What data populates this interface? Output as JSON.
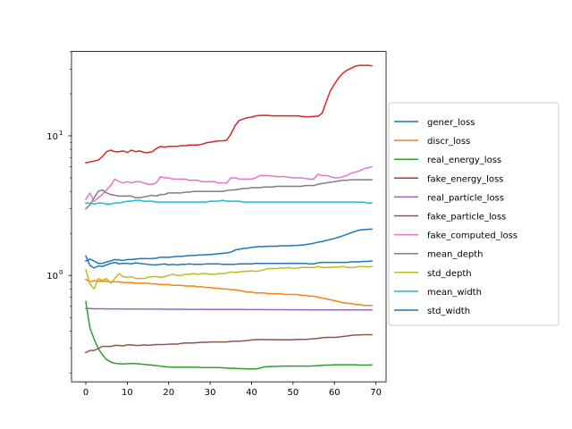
{
  "chart_data": {
    "type": "line",
    "title": "",
    "xlabel": "",
    "ylabel": "",
    "yscale": "log",
    "xlim": [
      -3.45,
      72.45
    ],
    "ylim": [
      0.173,
      40.2
    ],
    "xticks": [
      0,
      10,
      20,
      30,
      40,
      50,
      60,
      70
    ],
    "yticks": [
      {
        "value": 1,
        "label": "10",
        "exp": "0"
      },
      {
        "value": 10,
        "label": "10",
        "exp": "1"
      }
    ],
    "grid": false,
    "legend": "outside-right",
    "x": [
      0,
      1,
      2,
      3,
      4,
      5,
      6,
      7,
      8,
      9,
      10,
      11,
      12,
      13,
      14,
      15,
      16,
      17,
      18,
      19,
      20,
      21,
      22,
      23,
      24,
      25,
      26,
      27,
      28,
      29,
      30,
      31,
      32,
      33,
      34,
      35,
      36,
      37,
      38,
      39,
      40,
      41,
      42,
      43,
      44,
      45,
      46,
      47,
      48,
      49,
      50,
      51,
      52,
      53,
      54,
      55,
      56,
      57,
      58,
      59,
      60,
      61,
      62,
      63,
      64,
      65,
      66,
      67,
      68,
      69
    ],
    "series": [
      {
        "name": "gener_loss",
        "color": "#1f77b4",
        "values": [
          1.27,
          1.31,
          1.27,
          1.22,
          1.22,
          1.25,
          1.27,
          1.3,
          1.29,
          1.28,
          1.3,
          1.3,
          1.31,
          1.32,
          1.32,
          1.32,
          1.32,
          1.33,
          1.35,
          1.35,
          1.35,
          1.36,
          1.37,
          1.37,
          1.38,
          1.39,
          1.39,
          1.4,
          1.4,
          1.41,
          1.41,
          1.42,
          1.43,
          1.44,
          1.45,
          1.47,
          1.52,
          1.54,
          1.56,
          1.57,
          1.59,
          1.6,
          1.61,
          1.61,
          1.62,
          1.62,
          1.62,
          1.63,
          1.63,
          1.63,
          1.64,
          1.64,
          1.65,
          1.66,
          1.68,
          1.7,
          1.73,
          1.75,
          1.78,
          1.81,
          1.84,
          1.88,
          1.92,
          1.97,
          2.02,
          2.07,
          2.11,
          2.13,
          2.14,
          2.15
        ]
      },
      {
        "name": "discr_loss",
        "color": "#ff7f0e",
        "values": [
          0.94,
          0.9,
          0.92,
          0.91,
          0.91,
          0.91,
          0.9,
          0.9,
          0.9,
          0.89,
          0.89,
          0.89,
          0.88,
          0.88,
          0.88,
          0.88,
          0.87,
          0.87,
          0.86,
          0.86,
          0.86,
          0.85,
          0.85,
          0.85,
          0.84,
          0.84,
          0.84,
          0.83,
          0.83,
          0.82,
          0.82,
          0.81,
          0.81,
          0.8,
          0.8,
          0.79,
          0.79,
          0.78,
          0.77,
          0.76,
          0.76,
          0.75,
          0.75,
          0.75,
          0.74,
          0.74,
          0.74,
          0.74,
          0.73,
          0.73,
          0.73,
          0.73,
          0.72,
          0.72,
          0.71,
          0.71,
          0.7,
          0.69,
          0.68,
          0.67,
          0.66,
          0.65,
          0.64,
          0.63,
          0.63,
          0.62,
          0.62,
          0.61,
          0.61,
          0.61
        ]
      },
      {
        "name": "real_energy_loss",
        "color": "#2ca02c",
        "values": [
          0.65,
          0.42,
          0.35,
          0.3,
          0.27,
          0.25,
          0.24,
          0.235,
          0.233,
          0.232,
          0.233,
          0.234,
          0.234,
          0.232,
          0.231,
          0.229,
          0.228,
          0.226,
          0.224,
          0.222,
          0.221,
          0.22,
          0.22,
          0.22,
          0.22,
          0.22,
          0.22,
          0.22,
          0.219,
          0.219,
          0.219,
          0.219,
          0.219,
          0.218,
          0.217,
          0.216,
          0.216,
          0.215,
          0.215,
          0.214,
          0.214,
          0.214,
          0.217,
          0.221,
          0.222,
          0.223,
          0.223,
          0.224,
          0.224,
          0.224,
          0.224,
          0.224,
          0.224,
          0.224,
          0.224,
          0.225,
          0.226,
          0.227,
          0.228,
          0.228,
          0.229,
          0.229,
          0.229,
          0.229,
          0.229,
          0.229,
          0.228,
          0.228,
          0.228,
          0.229
        ]
      },
      {
        "name": "fake_energy_loss",
        "color": "#d62728",
        "values": [
          6.4,
          6.5,
          6.6,
          6.7,
          7.1,
          7.7,
          7.9,
          7.7,
          7.7,
          7.8,
          7.6,
          7.9,
          7.7,
          7.8,
          7.6,
          7.6,
          7.7,
          8.1,
          8.4,
          8.3,
          8.4,
          8.4,
          8.4,
          8.5,
          8.5,
          8.6,
          8.6,
          8.6,
          8.7,
          8.9,
          9.0,
          9.1,
          9.2,
          9.2,
          9.3,
          10.3,
          11.8,
          12.9,
          13.2,
          13.5,
          13.6,
          13.9,
          14.0,
          14.0,
          14.0,
          13.9,
          13.9,
          13.9,
          13.9,
          13.9,
          13.9,
          13.9,
          13.8,
          13.7,
          13.7,
          13.8,
          13.8,
          14.5,
          17.5,
          21.0,
          23.5,
          26.0,
          28.0,
          29.5,
          30.5,
          31.5,
          32.0,
          32.0,
          32.0,
          31.8
        ]
      },
      {
        "name": "real_particle_loss",
        "color": "#9467bd",
        "values": [
          0.58,
          0.58,
          0.577,
          0.577,
          0.577,
          0.576,
          0.576,
          0.576,
          0.576,
          0.575,
          0.575,
          0.575,
          0.575,
          0.575,
          0.574,
          0.574,
          0.574,
          0.574,
          0.574,
          0.573,
          0.573,
          0.573,
          0.573,
          0.573,
          0.572,
          0.572,
          0.572,
          0.572,
          0.572,
          0.571,
          0.571,
          0.571,
          0.571,
          0.571,
          0.57,
          0.57,
          0.57,
          0.57,
          0.57,
          0.569,
          0.569,
          0.569,
          0.569,
          0.569,
          0.568,
          0.568,
          0.568,
          0.568,
          0.568,
          0.567,
          0.567,
          0.567,
          0.567,
          0.567,
          0.566,
          0.566,
          0.566,
          0.566,
          0.566,
          0.566,
          0.566,
          0.566,
          0.566,
          0.566,
          0.566,
          0.566,
          0.566,
          0.566,
          0.566,
          0.566
        ]
      },
      {
        "name": "fake_particle_loss",
        "color": "#8c564b",
        "values": [
          0.28,
          0.29,
          0.29,
          0.3,
          0.31,
          0.31,
          0.31,
          0.315,
          0.315,
          0.313,
          0.318,
          0.318,
          0.315,
          0.315,
          0.318,
          0.316,
          0.318,
          0.32,
          0.32,
          0.32,
          0.322,
          0.322,
          0.322,
          0.326,
          0.328,
          0.328,
          0.328,
          0.33,
          0.332,
          0.332,
          0.334,
          0.334,
          0.334,
          0.334,
          0.334,
          0.337,
          0.338,
          0.338,
          0.34,
          0.342,
          0.345,
          0.347,
          0.348,
          0.347,
          0.347,
          0.346,
          0.346,
          0.346,
          0.346,
          0.346,
          0.346,
          0.348,
          0.348,
          0.348,
          0.35,
          0.352,
          0.354,
          0.358,
          0.36,
          0.36,
          0.36,
          0.362,
          0.365,
          0.368,
          0.372,
          0.374,
          0.375,
          0.376,
          0.376,
          0.376
        ]
      },
      {
        "name": "fake_computed_loss",
        "color": "#e377c2",
        "values": [
          3.5,
          3.9,
          3.4,
          3.6,
          3.8,
          4.1,
          4.4,
          4.9,
          4.7,
          4.6,
          4.7,
          4.6,
          4.7,
          4.7,
          4.6,
          4.5,
          4.5,
          4.6,
          5.1,
          5.0,
          5.0,
          4.9,
          4.9,
          4.9,
          4.9,
          4.8,
          4.8,
          4.8,
          4.7,
          4.7,
          4.7,
          4.7,
          4.6,
          4.6,
          4.6,
          5.0,
          5.0,
          4.9,
          4.9,
          4.9,
          4.9,
          5.0,
          5.2,
          5.2,
          5.2,
          5.15,
          5.1,
          5.1,
          5.1,
          5.05,
          5.0,
          5.0,
          5.0,
          4.95,
          4.9,
          4.9,
          5.3,
          5.2,
          5.2,
          5.1,
          5.0,
          5.0,
          5.1,
          5.2,
          5.4,
          5.5,
          5.6,
          5.8,
          5.9,
          6.0
        ]
      },
      {
        "name": "mean_depth",
        "color": "#7f7f7f",
        "values": [
          3.0,
          3.2,
          3.6,
          4.0,
          4.1,
          3.9,
          3.8,
          3.75,
          3.7,
          3.7,
          3.7,
          3.7,
          3.6,
          3.6,
          3.65,
          3.7,
          3.75,
          3.7,
          3.8,
          3.8,
          3.9,
          3.9,
          3.9,
          3.9,
          3.95,
          3.95,
          4.0,
          4.0,
          4.0,
          4.0,
          4.0,
          4.0,
          4.0,
          4.0,
          4.05,
          4.1,
          4.1,
          4.15,
          4.2,
          4.2,
          4.25,
          4.25,
          4.25,
          4.3,
          4.3,
          4.3,
          4.35,
          4.35,
          4.35,
          4.35,
          4.35,
          4.35,
          4.35,
          4.4,
          4.4,
          4.4,
          4.5,
          4.55,
          4.6,
          4.65,
          4.7,
          4.75,
          4.8,
          4.8,
          4.85,
          4.85,
          4.85,
          4.85,
          4.85,
          4.85
        ]
      },
      {
        "name": "std_depth",
        "color": "#bcbd22",
        "values": [
          1.1,
          0.87,
          0.8,
          0.95,
          0.92,
          0.95,
          0.88,
          0.95,
          1.03,
          0.98,
          0.97,
          0.98,
          0.95,
          0.95,
          0.95,
          0.97,
          0.98,
          0.98,
          0.97,
          0.98,
          1.0,
          1.02,
          1.0,
          1.0,
          1.02,
          1.02,
          1.03,
          1.02,
          1.03,
          1.03,
          1.02,
          1.02,
          1.03,
          1.03,
          1.04,
          1.06,
          1.05,
          1.06,
          1.07,
          1.07,
          1.08,
          1.07,
          1.08,
          1.1,
          1.12,
          1.12,
          1.12,
          1.13,
          1.13,
          1.14,
          1.12,
          1.13,
          1.14,
          1.14,
          1.14,
          1.14,
          1.16,
          1.14,
          1.14,
          1.14,
          1.15,
          1.15,
          1.16,
          1.14,
          1.14,
          1.14,
          1.16,
          1.16,
          1.15,
          1.16
        ]
      },
      {
        "name": "mean_width",
        "color": "#17becf",
        "values": [
          3.3,
          3.3,
          3.25,
          3.3,
          3.3,
          3.25,
          3.25,
          3.3,
          3.3,
          3.35,
          3.4,
          3.4,
          3.45,
          3.45,
          3.4,
          3.4,
          3.4,
          3.35,
          3.35,
          3.35,
          3.35,
          3.35,
          3.35,
          3.35,
          3.35,
          3.35,
          3.35,
          3.35,
          3.35,
          3.35,
          3.4,
          3.4,
          3.4,
          3.45,
          3.4,
          3.4,
          3.4,
          3.4,
          3.35,
          3.35,
          3.35,
          3.35,
          3.35,
          3.35,
          3.35,
          3.35,
          3.35,
          3.35,
          3.35,
          3.35,
          3.35,
          3.35,
          3.35,
          3.35,
          3.35,
          3.35,
          3.35,
          3.35,
          3.35,
          3.35,
          3.35,
          3.35,
          3.35,
          3.35,
          3.35,
          3.35,
          3.35,
          3.35,
          3.3,
          3.3
        ]
      },
      {
        "name": "std_width",
        "color": "#1f77b4",
        "values": [
          1.38,
          1.18,
          1.13,
          1.17,
          1.16,
          1.19,
          1.22,
          1.24,
          1.21,
          1.22,
          1.22,
          1.21,
          1.23,
          1.22,
          1.21,
          1.2,
          1.19,
          1.19,
          1.2,
          1.21,
          1.19,
          1.2,
          1.19,
          1.2,
          1.2,
          1.21,
          1.2,
          1.2,
          1.2,
          1.21,
          1.21,
          1.21,
          1.21,
          1.2,
          1.2,
          1.2,
          1.2,
          1.21,
          1.21,
          1.21,
          1.21,
          1.22,
          1.22,
          1.22,
          1.22,
          1.22,
          1.22,
          1.22,
          1.22,
          1.22,
          1.22,
          1.22,
          1.22,
          1.22,
          1.21,
          1.21,
          1.23,
          1.24,
          1.24,
          1.24,
          1.24,
          1.24,
          1.24,
          1.24,
          1.25,
          1.25,
          1.25,
          1.26,
          1.26,
          1.27
        ]
      }
    ]
  }
}
